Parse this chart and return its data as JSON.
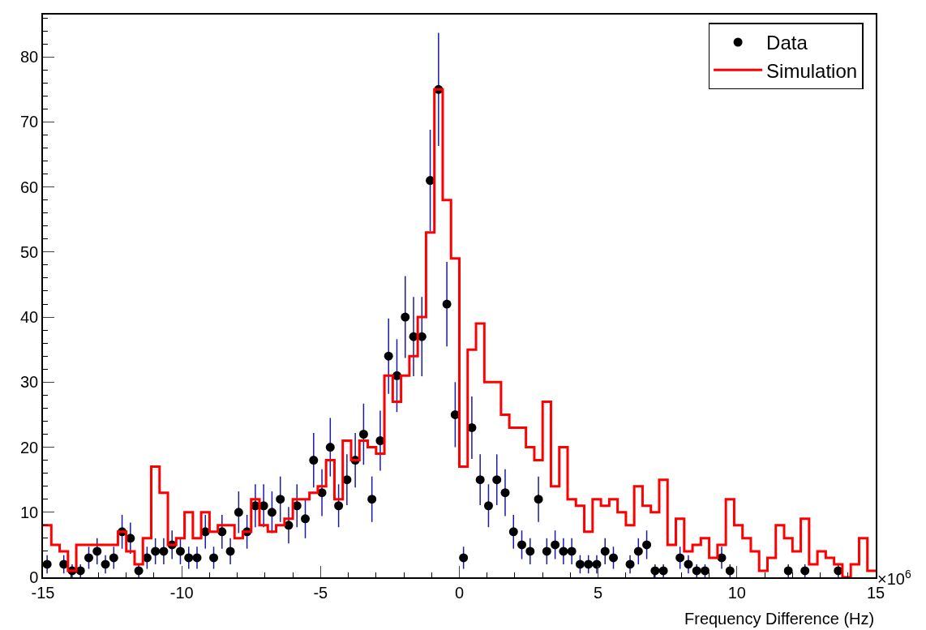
{
  "chart_data": {
    "type": "scatter",
    "xlabel": "Frequency Difference (Hz)",
    "annotations": [
      "×10$^{6}$"
    ],
    "xlim": [
      -15,
      15
    ],
    "xticks": [
      -15,
      -10,
      -5,
      0,
      5,
      10,
      15
    ],
    "ylim": [
      0,
      86.5
    ],
    "yticks": [
      0,
      10,
      20,
      30,
      40,
      50,
      60,
      70,
      80
    ],
    "legend": "top right",
    "marker": "circle",
    "series": [
      {
        "name": "Data",
        "color": "#000000",
        "x": [
          -14.85,
          -14.25,
          -13.95,
          -13.65,
          -13.35,
          -13.05,
          -12.75,
          -12.45,
          -12.15,
          -11.85,
          -11.55,
          -11.25,
          -10.95,
          -10.65,
          -10.35,
          -10.05,
          -9.75,
          -9.45,
          -9.15,
          -8.85,
          -8.55,
          -8.25,
          -7.95,
          -7.65,
          -7.35,
          -7.05,
          -6.75,
          -6.45,
          -6.15,
          -5.85,
          -5.55,
          -5.25,
          -4.95,
          -4.65,
          -4.35,
          -4.05,
          -3.75,
          -3.45,
          -3.15,
          -2.85,
          -2.55,
          -2.25,
          -1.95,
          -1.65,
          -1.35,
          -1.05,
          -0.75,
          -0.45,
          -0.15,
          0.15,
          0.45,
          0.75,
          1.05,
          1.35,
          1.65,
          1.95,
          2.25,
          2.55,
          2.85,
          3.15,
          3.45,
          3.75,
          4.05,
          4.35,
          4.65,
          4.95,
          5.25,
          5.55,
          6.15,
          6.45,
          6.75,
          7.05,
          7.35,
          7.95,
          8.25,
          8.55,
          8.85,
          9.45,
          9.75,
          11.85,
          12.45,
          13.65
        ],
        "values": [
          2,
          2,
          1,
          1,
          3,
          4,
          2,
          3,
          7,
          6,
          1,
          3,
          4,
          4,
          5,
          4,
          3,
          3,
          7,
          3,
          7,
          4,
          10,
          7,
          11,
          11,
          10,
          12,
          8,
          11,
          9,
          18,
          13,
          20,
          11,
          15,
          18,
          22,
          12,
          21,
          34,
          31,
          40,
          37,
          37,
          61,
          75,
          42,
          25,
          3,
          23,
          15,
          11,
          15,
          13,
          7,
          5,
          4,
          12,
          4,
          5,
          4,
          4,
          2,
          2,
          2,
          4,
          3,
          2,
          4,
          5,
          1,
          1,
          3,
          2,
          1,
          1,
          3,
          1,
          1,
          1,
          1
        ],
        "errors": [
          1.4,
          1.4,
          1,
          1,
          1.7,
          2,
          1.4,
          1.7,
          2.6,
          2.4,
          1,
          1.7,
          2,
          2,
          2.2,
          2,
          1.7,
          1.7,
          2.6,
          1.7,
          2.6,
          2,
          3.2,
          2.6,
          3.3,
          3.3,
          3.2,
          3.5,
          2.8,
          3.3,
          3,
          4.2,
          3.6,
          4.5,
          3.3,
          3.9,
          4.2,
          4.7,
          3.5,
          4.6,
          5.8,
          5.6,
          6.3,
          6.1,
          6.1,
          7.8,
          8.7,
          6.5,
          5,
          1.7,
          4.8,
          3.9,
          3.3,
          3.9,
          3.6,
          2.6,
          2.2,
          2,
          3.5,
          2,
          2.2,
          2,
          2,
          1.4,
          1.4,
          1.4,
          2,
          1.7,
          1.4,
          2,
          2.2,
          1,
          1,
          1.7,
          1.4,
          1,
          1,
          1.7,
          1,
          1,
          1,
          1
        ]
      },
      {
        "name": "Simulation",
        "type": "histogram",
        "color": "#ff0000",
        "bins": [
          -15,
          -14.7,
          -14.4,
          -14.1,
          -13.8,
          -13.5,
          -13.2,
          -12.9,
          -12.6,
          -12.3,
          -12,
          -11.7,
          -11.4,
          -11.1,
          -10.8,
          -10.5,
          -10.2,
          -9.9,
          -9.6,
          -9.3,
          -9,
          -8.7,
          -8.4,
          -8.1,
          -7.8,
          -7.5,
          -7.2,
          -6.9,
          -6.6,
          -6.3,
          -6,
          -5.7,
          -5.4,
          -5.1,
          -4.8,
          -4.5,
          -4.2,
          -3.9,
          -3.6,
          -3.3,
          -3,
          -2.7,
          -2.4,
          -2.1,
          -1.8,
          -1.5,
          -1.2,
          -0.9,
          -0.6,
          -0.3,
          0,
          0.3,
          0.6,
          0.9,
          1.2,
          1.5,
          1.8,
          2.1,
          2.4,
          2.7,
          3,
          3.3,
          3.6,
          3.9,
          4.2,
          4.5,
          4.8,
          5.1,
          5.4,
          5.7,
          6,
          6.3,
          6.6,
          6.9,
          7.2,
          7.5,
          7.8,
          8.1,
          8.4,
          8.7,
          9,
          9.3,
          9.6,
          9.9,
          10.2,
          10.5,
          10.8,
          11.1,
          11.4,
          11.7,
          12,
          12.3,
          12.6,
          12.9,
          13.2,
          13.5,
          13.8,
          14.1,
          14.4,
          14.7,
          15
        ],
        "values": [
          8,
          5,
          4,
          1,
          5,
          5,
          5,
          5,
          5,
          7,
          4,
          2,
          6,
          17,
          13,
          5,
          6,
          10,
          6,
          10,
          7,
          8,
          8,
          6,
          7,
          12,
          8,
          7,
          8,
          9,
          12,
          12,
          13,
          14,
          18,
          12,
          21,
          18,
          21,
          20,
          19,
          31,
          27,
          31,
          34,
          40,
          53,
          75,
          58,
          49,
          17,
          35,
          39,
          30,
          30,
          25,
          23,
          23,
          20,
          18,
          27,
          14,
          20,
          12,
          11,
          7,
          12,
          11,
          12,
          10,
          8,
          14,
          11,
          10,
          15,
          5,
          9,
          4,
          5,
          6,
          3,
          5,
          12,
          8,
          6,
          4,
          1,
          3,
          8,
          6,
          4,
          9,
          2,
          4,
          3,
          2,
          0,
          2,
          6,
          1
        ]
      }
    ]
  }
}
